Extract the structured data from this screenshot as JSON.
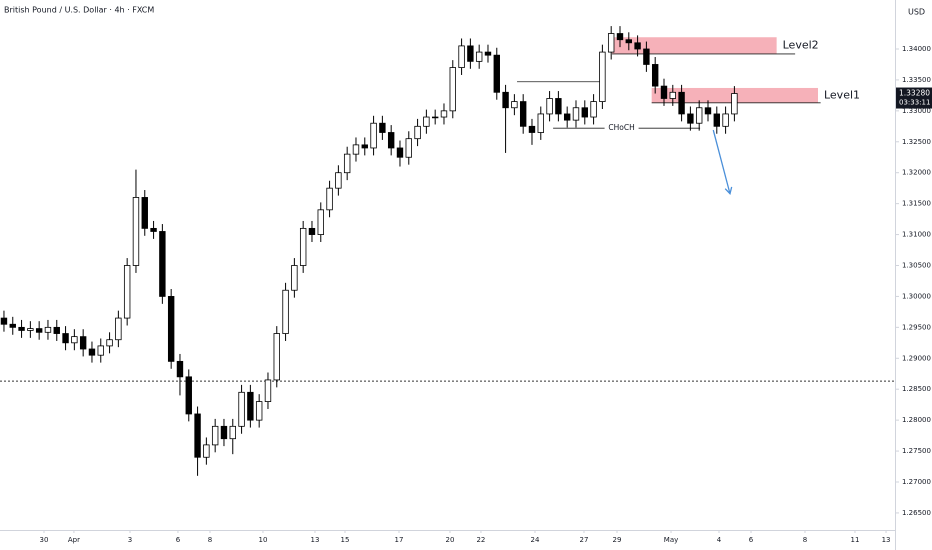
{
  "chart_data": {
    "type": "candlestick",
    "title": "British Pound / U.S. Dollar · 4h · FXCM",
    "currency": "USD",
    "up_color": "#ffffff",
    "down_color": "#000000",
    "wick_color": "#000000",
    "grid": false,
    "open": [
      1.2965,
      1.2955,
      1.295,
      1.2945,
      1.2948,
      1.2942,
      1.295,
      1.294,
      1.2925,
      1.2935,
      1.2915,
      1.2905,
      1.292,
      1.293,
      1.2965,
      1.305,
      1.316,
      1.311,
      1.3105,
      1.3,
      1.2895,
      1.287,
      1.281,
      1.274,
      1.276,
      1.279,
      1.277,
      1.279,
      1.2845,
      1.28,
      1.283,
      1.2865,
      1.294,
      1.301,
      1.305,
      1.311,
      1.31,
      1.314,
      1.3175,
      1.32,
      1.323,
      1.3245,
      1.324,
      1.328,
      1.3265,
      1.324,
      1.3225,
      1.3255,
      1.3275,
      1.329,
      1.329,
      1.33,
      1.337,
      1.3405,
      1.338,
      1.3395,
      1.339,
      1.333,
      1.3305,
      1.3315,
      1.3275,
      1.3265,
      1.3295,
      1.332,
      1.3295,
      1.3285,
      1.3305,
      1.329,
      1.3315,
      1.3395,
      1.3425,
      1.3415,
      1.341,
      1.34,
      1.3375,
      1.334,
      1.332,
      1.333,
      1.3295,
      1.328,
      1.3305,
      1.3295,
      1.3275,
      1.3295
    ],
    "high": [
      1.2977,
      1.2967,
      1.2962,
      1.296,
      1.296,
      1.2962,
      1.2962,
      1.2952,
      1.2947,
      1.2947,
      1.2927,
      1.2932,
      1.2942,
      1.2977,
      1.3062,
      1.3205,
      1.3172,
      1.3122,
      1.3117,
      1.3012,
      1.2907,
      1.2882,
      1.2822,
      1.2772,
      1.2802,
      1.2802,
      1.2802,
      1.2857,
      1.2857,
      1.2842,
      1.2877,
      1.2952,
      1.3022,
      1.3062,
      1.3122,
      1.3122,
      1.3152,
      1.3187,
      1.3212,
      1.3242,
      1.3257,
      1.3257,
      1.3292,
      1.3292,
      1.3277,
      1.3252,
      1.3267,
      1.3287,
      1.3302,
      1.3302,
      1.3312,
      1.3382,
      1.3417,
      1.3417,
      1.3407,
      1.3407,
      1.3402,
      1.3342,
      1.3327,
      1.3327,
      1.3287,
      1.3307,
      1.3332,
      1.3332,
      1.3307,
      1.3317,
      1.3317,
      1.3327,
      1.3407,
      1.3437,
      1.3437,
      1.3427,
      1.3422,
      1.3412,
      1.3387,
      1.3352,
      1.3342,
      1.3342,
      1.3307,
      1.3317,
      1.3317,
      1.3307,
      1.3307,
      1.334
    ],
    "low": [
      1.2943,
      1.2938,
      1.2933,
      1.2933,
      1.293,
      1.293,
      1.2928,
      1.2913,
      1.2913,
      1.2903,
      1.2893,
      1.2893,
      1.2908,
      1.2918,
      1.2953,
      1.3038,
      1.3098,
      1.3093,
      1.2988,
      1.2883,
      1.284,
      1.2798,
      1.271,
      1.2728,
      1.2748,
      1.2758,
      1.2745,
      1.2778,
      1.2788,
      1.2788,
      1.2818,
      1.2853,
      1.2928,
      1.2998,
      1.3038,
      1.3088,
      1.3088,
      1.3128,
      1.3163,
      1.3188,
      1.3218,
      1.3228,
      1.3228,
      1.3253,
      1.3228,
      1.321,
      1.3213,
      1.3243,
      1.3263,
      1.3278,
      1.3278,
      1.3288,
      1.3358,
      1.3368,
      1.3368,
      1.3378,
      1.3318,
      1.3232,
      1.3293,
      1.3263,
      1.3245,
      1.3253,
      1.3283,
      1.3283,
      1.3273,
      1.3273,
      1.3278,
      1.3278,
      1.3303,
      1.3383,
      1.3403,
      1.3398,
      1.3388,
      1.3363,
      1.3328,
      1.3308,
      1.3308,
      1.3283,
      1.3268,
      1.3268,
      1.3283,
      1.3263,
      1.3263,
      1.3283
    ],
    "close": [
      1.2955,
      1.295,
      1.2945,
      1.2948,
      1.2942,
      1.295,
      1.294,
      1.2925,
      1.2935,
      1.2915,
      1.2905,
      1.292,
      1.293,
      1.2965,
      1.305,
      1.316,
      1.311,
      1.3105,
      1.3,
      1.2895,
      1.287,
      1.281,
      1.274,
      1.276,
      1.279,
      1.277,
      1.279,
      1.2845,
      1.28,
      1.283,
      1.2865,
      1.294,
      1.301,
      1.305,
      1.311,
      1.31,
      1.314,
      1.3175,
      1.32,
      1.323,
      1.3245,
      1.324,
      1.328,
      1.3265,
      1.324,
      1.3225,
      1.3255,
      1.3275,
      1.329,
      1.329,
      1.33,
      1.337,
      1.3405,
      1.338,
      1.3395,
      1.339,
      1.333,
      1.3305,
      1.3315,
      1.3275,
      1.3265,
      1.3295,
      1.332,
      1.3295,
      1.3285,
      1.3305,
      1.329,
      1.3315,
      1.3395,
      1.3425,
      1.3415,
      1.341,
      1.34,
      1.3375,
      1.334,
      1.332,
      1.333,
      1.3295,
      1.328,
      1.3305,
      1.3295,
      1.3275,
      1.3295,
      1.3328
    ],
    "xlim": [
      -0.45,
      101.25
    ],
    "ylim": [
      1.26224,
      1.34792
    ],
    "xticks": [
      {
        "value": 4.55,
        "label": "30"
      },
      {
        "value": 7.95,
        "label": "Apr"
      },
      {
        "value": 14.32,
        "label": "3"
      },
      {
        "value": 19.77,
        "label": "6"
      },
      {
        "value": 23.41,
        "label": "8"
      },
      {
        "value": 29.43,
        "label": "10"
      },
      {
        "value": 35.34,
        "label": "13"
      },
      {
        "value": 38.75,
        "label": "15"
      },
      {
        "value": 44.89,
        "label": "17"
      },
      {
        "value": 50.68,
        "label": "20"
      },
      {
        "value": 54.2,
        "label": "22"
      },
      {
        "value": 60.34,
        "label": "24"
      },
      {
        "value": 65.91,
        "label": "27"
      },
      {
        "value": 69.66,
        "label": "29"
      },
      {
        "value": 75.8,
        "label": "May"
      },
      {
        "value": 81.25,
        "label": "4"
      },
      {
        "value": 84.89,
        "label": "6"
      },
      {
        "value": 91.02,
        "label": "8"
      },
      {
        "value": 96.7,
        "label": "11"
      },
      {
        "value": 100.23,
        "label": "13"
      }
    ],
    "yticks": [
      {
        "value": 1.265,
        "label": "1.26500"
      },
      {
        "value": 1.27,
        "label": "1.27000"
      },
      {
        "value": 1.275,
        "label": "1.27500"
      },
      {
        "value": 1.28,
        "label": "1.28000"
      },
      {
        "value": 1.285,
        "label": "1.28500"
      },
      {
        "value": 1.29,
        "label": "1.29000"
      },
      {
        "value": 1.295,
        "label": "1.29500"
      },
      {
        "value": 1.3,
        "label": "1.30000"
      },
      {
        "value": 1.305,
        "label": "1.30500"
      },
      {
        "value": 1.31,
        "label": "1.31000"
      },
      {
        "value": 1.315,
        "label": "1.31500"
      },
      {
        "value": 1.32,
        "label": "1.32000"
      },
      {
        "value": 1.325,
        "label": "1.32500"
      },
      {
        "value": 1.33,
        "label": "1.33000"
      },
      {
        "value": 1.335,
        "label": "1.33500"
      },
      {
        "value": 1.34,
        "label": "1.34000"
      }
    ],
    "zones": [
      {
        "label": "Level2",
        "color": "#f4a3ad",
        "x": [
          69.1,
          87.8
        ],
        "y": [
          1.3392,
          1.3419
        ],
        "line_x": 89.9
      },
      {
        "label": "Level1",
        "color": "#f4a3ad",
        "x": [
          73.6,
          92.5
        ],
        "y": [
          1.3313,
          1.3337
        ],
        "line_x": 92.8
      }
    ],
    "lines": [
      {
        "x": [
          58.3,
          67.7
        ],
        "y": 1.3347
      },
      {
        "x": [
          62.4,
          79.1
        ],
        "y": 1.3272,
        "label": "CHoCH"
      }
    ],
    "hline": {
      "y": 1.2863,
      "style": "dotted"
    },
    "arrow": {
      "x": [
        80.6,
        82.5
      ],
      "y": [
        1.3269,
        1.3166
      ],
      "color": "#4a8fd9"
    },
    "last_price": {
      "value": 1.3328,
      "label": "1.33280"
    },
    "countdown": "03:33:11"
  }
}
